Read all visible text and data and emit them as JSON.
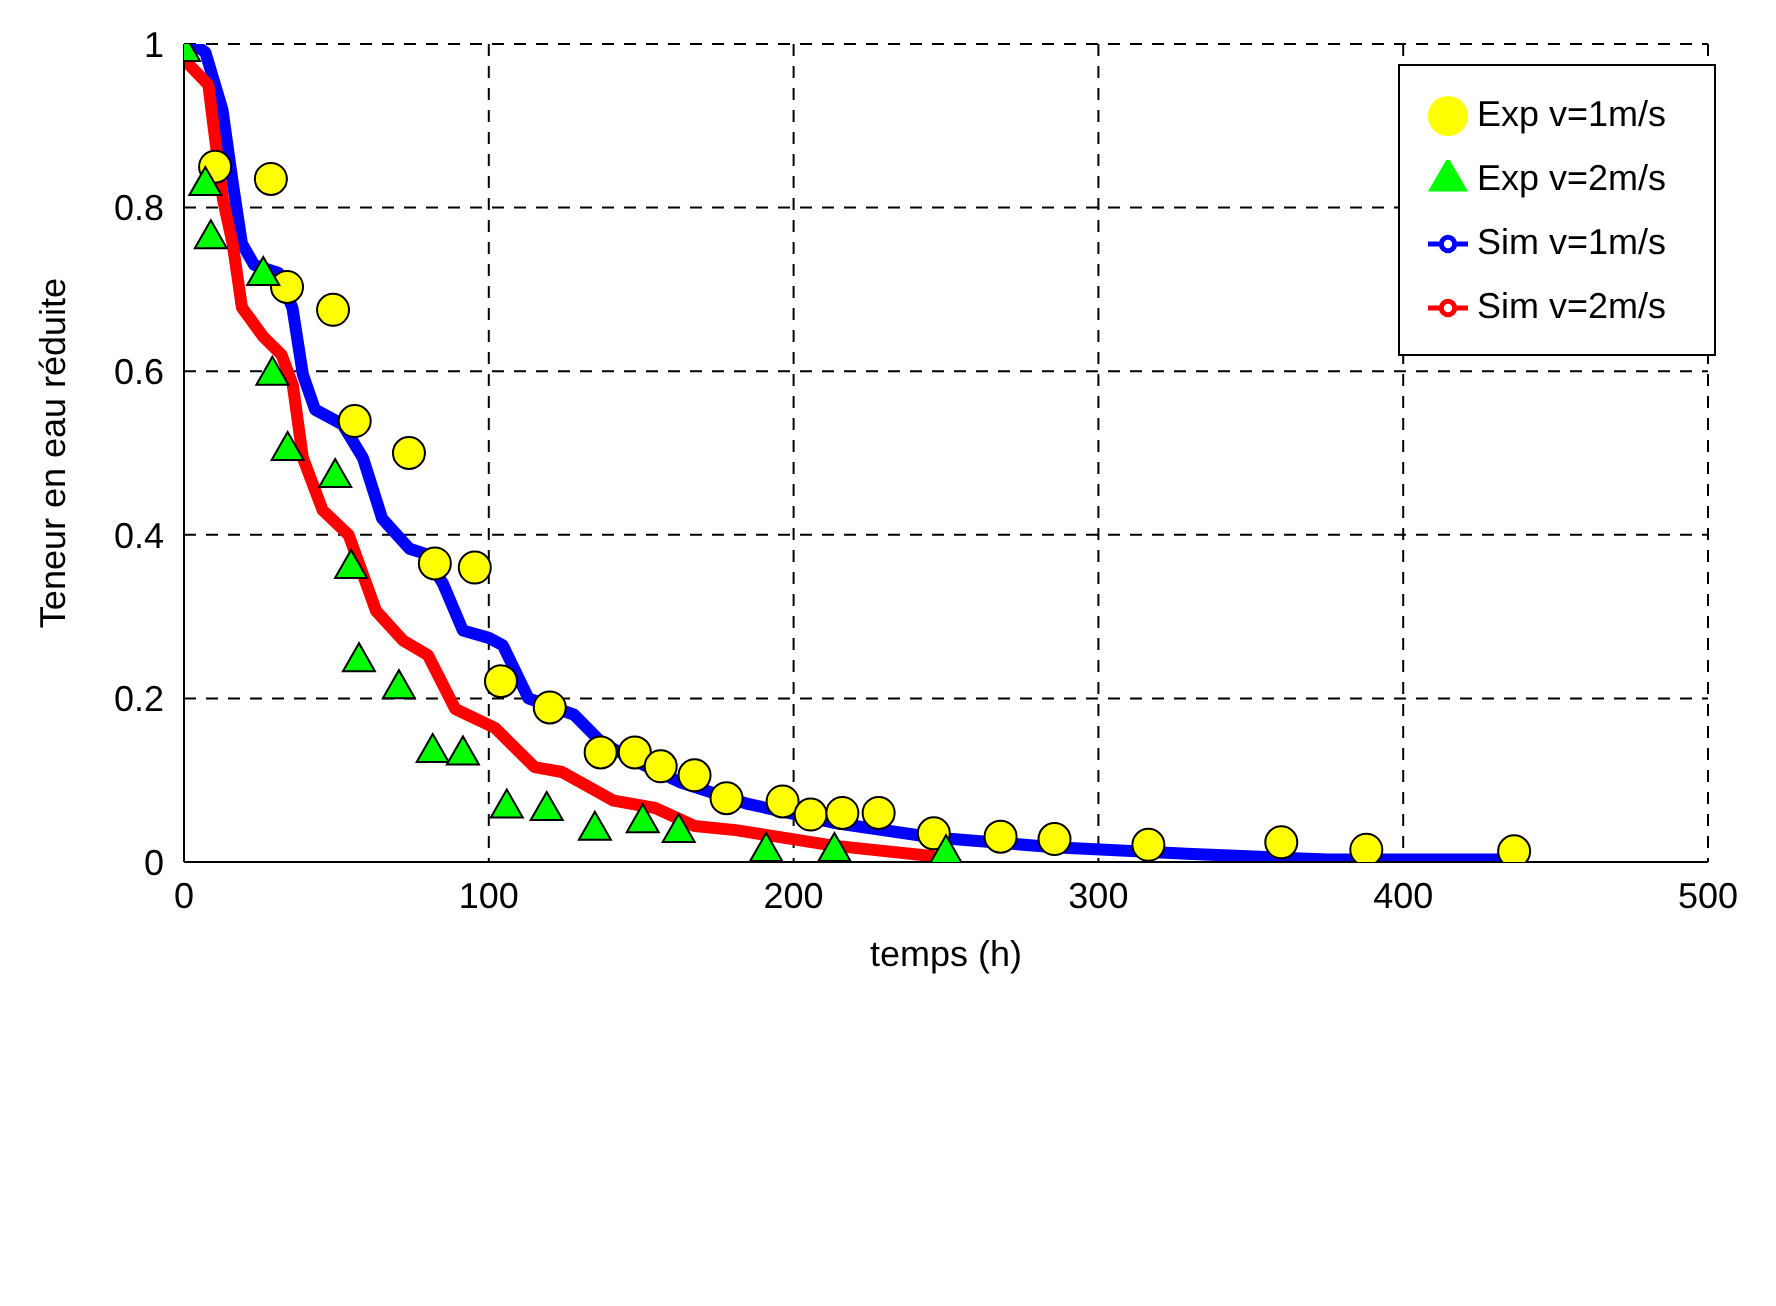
{
  "chart_data": {
    "type": "line",
    "xlabel": "temps (h)",
    "ylabel": "Teneur en eau réduite",
    "xlim": [
      0,
      500
    ],
    "xticks": [
      0,
      100,
      200,
      300,
      400,
      500
    ],
    "ylim": [
      0,
      1
    ],
    "yticks": [
      0,
      0.2,
      0.4,
      0.6,
      0.8,
      1
    ],
    "grid": true,
    "legend": "top right",
    "series": [
      {
        "name": "Sim v=1m/s",
        "color": "#0000ff",
        "marker": "none",
        "x": [
          3,
          7,
          12.6,
          16,
          19,
          23,
          31,
          35.6,
          39,
          43,
          52,
          58.7,
          65,
          74,
          79,
          85,
          91.5,
          100,
          104.6,
          113,
          128,
          137,
          150,
          163,
          185,
          213,
          246,
          285.6,
          329,
          375,
          432
        ],
        "values": [
          1.0,
          0.99,
          0.92,
          0.83,
          0.756,
          0.73,
          0.72,
          0.677,
          0.596,
          0.553,
          0.535,
          0.494,
          0.42,
          0.383,
          0.377,
          0.34,
          0.283,
          0.274,
          0.265,
          0.2,
          0.18,
          0.146,
          0.12,
          0.097,
          0.071,
          0.048,
          0.03,
          0.018,
          0.01,
          0.003,
          0.003
        ]
      },
      {
        "name": "Sim v=2m/s",
        "color": "#ff0000",
        "marker": "none",
        "x": [
          0.3,
          8,
          10,
          12.8,
          16,
          19,
          26,
          32,
          35.7,
          39,
          45.5,
          54,
          63,
          71.8,
          80,
          89,
          102,
          115,
          124,
          141,
          154.6,
          167.5,
          181,
          213,
          246
        ],
        "values": [
          0.98,
          0.95,
          0.89,
          0.81,
          0.755,
          0.678,
          0.642,
          0.62,
          0.583,
          0.494,
          0.43,
          0.4,
          0.307,
          0.271,
          0.253,
          0.187,
          0.164,
          0.116,
          0.11,
          0.075,
          0.066,
          0.044,
          0.039,
          0.02,
          0.007
        ]
      },
      {
        "name": "Exp v=1m/s",
        "type": "scatter",
        "color": "#ffff00",
        "marker": "circle",
        "x": [
          10.2,
          28.5,
          33.8,
          48.9,
          56,
          73.8,
          82.3,
          95.4,
          104,
          120,
          136.7,
          147.9,
          156.4,
          167.5,
          178,
          196.4,
          205.6,
          216,
          227.9,
          246,
          267.9,
          285.6,
          316.4,
          360,
          387.9,
          436.4
        ],
        "values": [
          0.85,
          0.835,
          0.703,
          0.675,
          0.539,
          0.5,
          0.365,
          0.36,
          0.221,
          0.189,
          0.134,
          0.134,
          0.117,
          0.106,
          0.078,
          0.074,
          0.058,
          0.06,
          0.06,
          0.035,
          0.031,
          0.028,
          0.021,
          0.024,
          0.015,
          0.013
        ]
      },
      {
        "name": "Exp v=2m/s",
        "type": "scatter",
        "color": "#00ff00",
        "marker": "triangle",
        "x": [
          0,
          7,
          8.8,
          26,
          29,
          34,
          49.6,
          54.8,
          57.4,
          70.5,
          81.6,
          91.5,
          105.9,
          119,
          134.8,
          150.5,
          162.3,
          191,
          213.4,
          250
        ],
        "values": [
          0.994,
          0.83,
          0.765,
          0.72,
          0.598,
          0.506,
          0.473,
          0.362,
          0.248,
          0.215,
          0.137,
          0.134,
          0.069,
          0.066,
          0.042,
          0.051,
          0.039,
          0.016,
          0.016,
          0.013
        ]
      }
    ]
  }
}
